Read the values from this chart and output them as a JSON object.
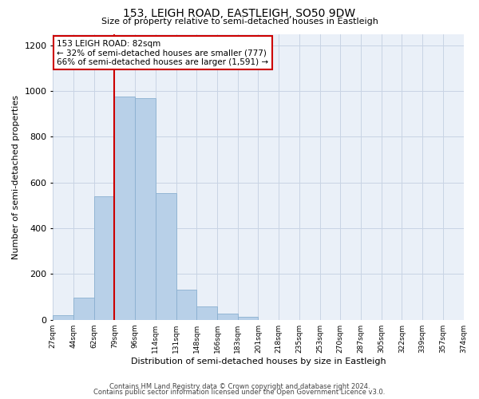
{
  "title": "153, LEIGH ROAD, EASTLEIGH, SO50 9DW",
  "subtitle": "Size of property relative to semi-detached houses in Eastleigh",
  "xlabel": "Distribution of semi-detached houses by size in Eastleigh",
  "ylabel": "Number of semi-detached properties",
  "footnote1": "Contains HM Land Registry data © Crown copyright and database right 2024.",
  "footnote2": "Contains public sector information licensed under the Open Government Licence v3.0.",
  "property_size": 82,
  "property_label": "153 LEIGH ROAD: 82sqm",
  "annotation_line1": "← 32% of semi-detached houses are smaller (777)",
  "annotation_line2": "66% of semi-detached houses are larger (1,591) →",
  "bin_edges": [
    27,
    44,
    62,
    79,
    96,
    114,
    131,
    148,
    166,
    183,
    201,
    218,
    235,
    253,
    270,
    287,
    305,
    322,
    339,
    357,
    374
  ],
  "bar_heights": [
    20,
    95,
    540,
    975,
    970,
    555,
    130,
    60,
    28,
    12,
    0,
    0,
    0,
    0,
    0,
    0,
    0,
    0,
    0,
    0
  ],
  "bar_color": "#b8d0e8",
  "bar_edge_color": "#8ab0d0",
  "property_line_color": "#cc0000",
  "box_edge_color": "#cc0000",
  "box_face_color": "#ffffff",
  "grid_color": "#c8d4e4",
  "background_color": "#eaf0f8",
  "ylim": [
    0,
    1250
  ],
  "yticks": [
    0,
    200,
    400,
    600,
    800,
    1000,
    1200
  ],
  "tick_labels": [
    "27sqm",
    "44sqm",
    "62sqm",
    "79sqm",
    "96sqm",
    "114sqm",
    "131sqm",
    "148sqm",
    "166sqm",
    "183sqm",
    "201sqm",
    "218sqm",
    "235sqm",
    "253sqm",
    "270sqm",
    "287sqm",
    "305sqm",
    "322sqm",
    "339sqm",
    "357sqm",
    "374sqm"
  ]
}
